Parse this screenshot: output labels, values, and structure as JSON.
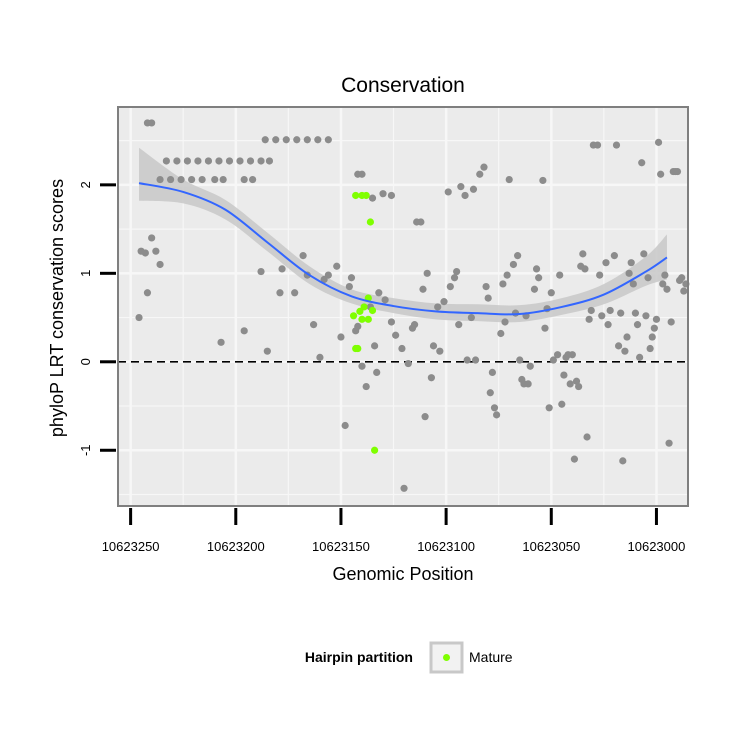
{
  "chart_data": {
    "type": "scatter",
    "title": "Conservation",
    "xlabel": "Genomic Position",
    "ylabel": "phyloP LRT conservation scores",
    "x_reversed": true,
    "xlim": [
      10623256,
      10622985
    ],
    "ylim": [
      -1.63,
      2.88
    ],
    "x_ticks": [
      10623250,
      10623200,
      10623150,
      10623100,
      10623050,
      10623000
    ],
    "x_tick_labels": [
      "10623250",
      "10623200",
      "10623150",
      "10623100",
      "10623050",
      "10623000"
    ],
    "y_ticks": [
      -1,
      0,
      1,
      2
    ],
    "y_tick_labels": [
      "-1",
      "0",
      "1",
      "2"
    ],
    "reference_line": {
      "y": 0,
      "style": "dashed",
      "color": "#000000"
    },
    "grid": true,
    "colors": {
      "panel_bg": "#ebebeb",
      "grid": "#f7f7f7",
      "panel_border": "#7f7f7f",
      "other_points": "#8c8c8c",
      "mature_points": "#7fff00",
      "smooth_line": "#3366ff",
      "ribbon": "#c8c8c8"
    },
    "smooth": {
      "x": [
        10623246,
        10623225,
        10623205,
        10623185,
        10623165,
        10623145,
        10623125,
        10623105,
        10623085,
        10623065,
        10623045,
        10623025,
        10623005,
        10622995
      ],
      "y": [
        2.02,
        1.92,
        1.72,
        1.35,
        0.98,
        0.74,
        0.63,
        0.57,
        0.55,
        0.54,
        0.62,
        0.76,
        1.02,
        1.18
      ],
      "lower": [
        1.82,
        1.79,
        1.61,
        1.25,
        0.88,
        0.66,
        0.55,
        0.48,
        0.46,
        0.45,
        0.53,
        0.65,
        0.86,
        0.93
      ],
      "upper": [
        2.42,
        2.06,
        1.83,
        1.46,
        1.08,
        0.82,
        0.72,
        0.66,
        0.65,
        0.64,
        0.72,
        0.88,
        1.19,
        1.44
      ]
    },
    "series": [
      {
        "name": "Other",
        "color": "#8c8c8c",
        "points": [
          [
            10623240,
            2.7
          ],
          [
            10623242,
            2.7
          ],
          [
            10623243,
            1.23
          ],
          [
            10623240,
            1.4
          ],
          [
            10623238,
            1.25
          ],
          [
            10623236,
            1.1
          ],
          [
            10623246,
            0.5
          ],
          [
            10623242,
            0.78
          ],
          [
            10623245,
            1.25
          ],
          [
            10623236,
            2.06
          ],
          [
            10623231,
            2.06
          ],
          [
            10623226,
            2.06
          ],
          [
            10623221,
            2.06
          ],
          [
            10623216,
            2.06
          ],
          [
            10623210,
            2.06
          ],
          [
            10623206,
            2.06
          ],
          [
            10623196,
            2.06
          ],
          [
            10623192,
            2.06
          ],
          [
            10623233,
            2.27
          ],
          [
            10623228,
            2.27
          ],
          [
            10623223,
            2.27
          ],
          [
            10623218,
            2.27
          ],
          [
            10623213,
            2.27
          ],
          [
            10623208,
            2.27
          ],
          [
            10623203,
            2.27
          ],
          [
            10623198,
            2.27
          ],
          [
            10623193,
            2.27
          ],
          [
            10623188,
            2.27
          ],
          [
            10623184,
            2.27
          ],
          [
            10623186,
            2.51
          ],
          [
            10623181,
            2.51
          ],
          [
            10623176,
            2.51
          ],
          [
            10623171,
            2.51
          ],
          [
            10623166,
            2.51
          ],
          [
            10623161,
            2.51
          ],
          [
            10623156,
            2.51
          ],
          [
            10623207,
            0.22
          ],
          [
            10623196,
            0.35
          ],
          [
            10623188,
            1.02
          ],
          [
            10623185,
            0.12
          ],
          [
            10623179,
            0.78
          ],
          [
            10623172,
            0.78
          ],
          [
            10623178,
            1.05
          ],
          [
            10623168,
            1.2
          ],
          [
            10623166,
            0.98
          ],
          [
            10623163,
            0.42
          ],
          [
            10623160,
            0.05
          ],
          [
            10623158,
            0.93
          ],
          [
            10623156,
            0.98
          ],
          [
            10623152,
            1.08
          ],
          [
            10623150,
            0.28
          ],
          [
            10623148,
            -0.72
          ],
          [
            10623146,
            0.85
          ],
          [
            10623145,
            0.95
          ],
          [
            10623143,
            0.35
          ],
          [
            10623142,
            0.4
          ],
          [
            10623140,
            -0.05
          ],
          [
            10623138,
            -0.28
          ],
          [
            10623136,
            0.62
          ],
          [
            10623134,
            0.18
          ],
          [
            10623133,
            -0.12
          ],
          [
            10623132,
            0.78
          ],
          [
            10623129,
            0.7
          ],
          [
            10623126,
            0.45
          ],
          [
            10623142,
            2.12
          ],
          [
            10623140,
            2.12
          ],
          [
            10623135,
            1.85
          ],
          [
            10623130,
            1.9
          ],
          [
            10623126,
            1.88
          ],
          [
            10623124,
            0.3
          ],
          [
            10623121,
            0.15
          ],
          [
            10623120,
            -1.43
          ],
          [
            10623118,
            -0.02
          ],
          [
            10623116,
            0.38
          ],
          [
            10623115,
            0.42
          ],
          [
            10623114,
            1.58
          ],
          [
            10623112,
            1.58
          ],
          [
            10623111,
            0.82
          ],
          [
            10623110,
            -0.62
          ],
          [
            10623109,
            1.0
          ],
          [
            10623107,
            -0.18
          ],
          [
            10623106,
            0.18
          ],
          [
            10623104,
            0.62
          ],
          [
            10623103,
            0.12
          ],
          [
            10623101,
            0.68
          ],
          [
            10623099,
            1.92
          ],
          [
            10623098,
            0.85
          ],
          [
            10623096,
            0.95
          ],
          [
            10623095,
            1.02
          ],
          [
            10623094,
            0.42
          ],
          [
            10623093,
            1.98
          ],
          [
            10623091,
            1.88
          ],
          [
            10623090,
            0.02
          ],
          [
            10623088,
            0.5
          ],
          [
            10623087,
            1.95
          ],
          [
            10623086,
            0.02
          ],
          [
            10623084,
            2.12
          ],
          [
            10623082,
            2.2
          ],
          [
            10623081,
            0.85
          ],
          [
            10623080,
            0.72
          ],
          [
            10623079,
            -0.35
          ],
          [
            10623078,
            -0.12
          ],
          [
            10623077,
            -0.52
          ],
          [
            10623076,
            -0.6
          ],
          [
            10623074,
            0.32
          ],
          [
            10623073,
            0.88
          ],
          [
            10623072,
            0.45
          ],
          [
            10623071,
            0.98
          ],
          [
            10623070,
            2.06
          ],
          [
            10623068,
            1.1
          ],
          [
            10623067,
            0.55
          ],
          [
            10623066,
            1.2
          ],
          [
            10623065,
            0.02
          ],
          [
            10623064,
            -0.2
          ],
          [
            10623063,
            -0.25
          ],
          [
            10623062,
            0.52
          ],
          [
            10623061,
            -0.25
          ],
          [
            10623060,
            -0.05
          ],
          [
            10623058,
            0.82
          ],
          [
            10623057,
            1.05
          ],
          [
            10623056,
            0.95
          ],
          [
            10623054,
            2.05
          ],
          [
            10623053,
            0.38
          ],
          [
            10623052,
            0.6
          ],
          [
            10623051,
            -0.52
          ],
          [
            10623050,
            0.78
          ],
          [
            10623049,
            0.02
          ],
          [
            10623047,
            0.08
          ],
          [
            10623046,
            0.98
          ],
          [
            10623045,
            -0.48
          ],
          [
            10623044,
            -0.15
          ],
          [
            10623043,
            0.05
          ],
          [
            10623042,
            0.08
          ],
          [
            10623041,
            -0.25
          ],
          [
            10623040,
            0.08
          ],
          [
            10623039,
            -1.1
          ],
          [
            10623038,
            -0.22
          ],
          [
            10623037,
            -0.28
          ],
          [
            10623036,
            1.08
          ],
          [
            10623035,
            1.22
          ],
          [
            10623034,
            1.05
          ],
          [
            10623033,
            -0.85
          ],
          [
            10623032,
            0.48
          ],
          [
            10623031,
            0.58
          ],
          [
            10623030,
            2.45
          ],
          [
            10623028,
            2.45
          ],
          [
            10623027,
            0.98
          ],
          [
            10623026,
            0.52
          ],
          [
            10623024,
            1.12
          ],
          [
            10623023,
            0.42
          ],
          [
            10623022,
            0.58
          ],
          [
            10623020,
            1.2
          ],
          [
            10623019,
            2.45
          ],
          [
            10623018,
            0.18
          ],
          [
            10623017,
            0.55
          ],
          [
            10623016,
            -1.12
          ],
          [
            10623015,
            0.12
          ],
          [
            10623014,
            0.28
          ],
          [
            10623013,
            1.0
          ],
          [
            10623012,
            1.12
          ],
          [
            10623011,
            0.88
          ],
          [
            10623010,
            0.55
          ],
          [
            10623009,
            0.42
          ],
          [
            10623008,
            0.05
          ],
          [
            10623007,
            2.25
          ],
          [
            10623006,
            1.22
          ],
          [
            10623005,
            0.52
          ],
          [
            10623004,
            0.95
          ],
          [
            10623003,
            0.15
          ],
          [
            10623002,
            0.28
          ],
          [
            10623001,
            0.38
          ],
          [
            10623000,
            0.48
          ],
          [
            10622999,
            2.48
          ],
          [
            10622998,
            2.12
          ],
          [
            10622997,
            0.88
          ],
          [
            10622996,
            0.98
          ],
          [
            10622995,
            0.82
          ],
          [
            10622994,
            -0.92
          ],
          [
            10622993,
            0.45
          ],
          [
            10622992,
            2.15
          ],
          [
            10622991,
            2.15
          ],
          [
            10622990,
            2.15
          ],
          [
            10622989,
            0.92
          ],
          [
            10622988,
            0.95
          ],
          [
            10622987,
            0.8
          ],
          [
            10622986,
            0.88
          ]
        ]
      },
      {
        "name": "Mature",
        "color": "#7fff00",
        "points": [
          [
            10623143,
            1.88
          ],
          [
            10623140,
            1.88
          ],
          [
            10623138,
            1.88
          ],
          [
            10623136,
            1.58
          ],
          [
            10623143,
            0.15
          ],
          [
            10623142,
            0.15
          ],
          [
            10623144,
            0.52
          ],
          [
            10623141,
            0.57
          ],
          [
            10623139,
            0.62
          ],
          [
            10623137,
            0.72
          ],
          [
            10623135,
            0.58
          ],
          [
            10623137,
            0.48
          ],
          [
            10623140,
            0.48
          ],
          [
            10623134,
            -1.0
          ]
        ]
      }
    ],
    "legend": {
      "title": "Hairpin partition",
      "entries": [
        "Mature"
      ],
      "placement": "bottom"
    }
  }
}
